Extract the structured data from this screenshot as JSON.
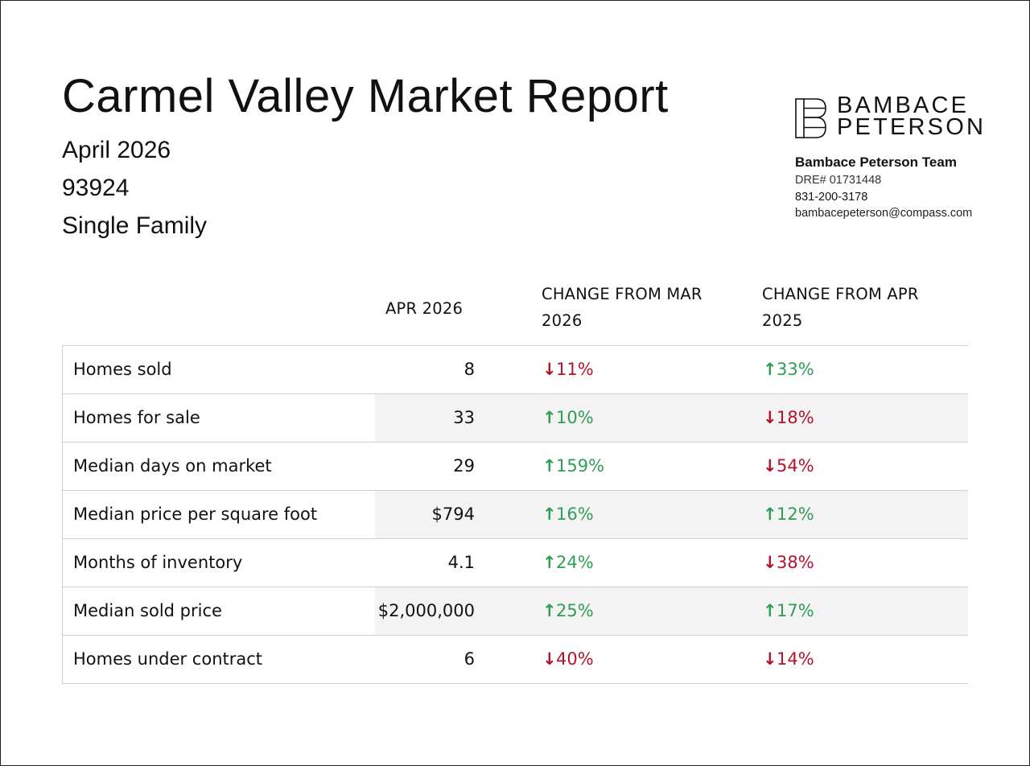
{
  "header": {
    "title": "Carmel Valley Market Report",
    "month": "April 2026",
    "zip": "93924",
    "property_type": "Single Family"
  },
  "brand": {
    "logo_icon": "bp-monogram-icon",
    "logo_line1": "BAMBACE",
    "logo_line2": "PETERSON",
    "team_name": "Bambace Peterson Team",
    "dre": "DRE# 01731448",
    "phone": "831-200-3178",
    "email": "bambacepeterson@compass.com"
  },
  "table": {
    "headers": {
      "current": "APR 2026",
      "change_month": "CHANGE FROM MAR 2026",
      "change_year": "CHANGE FROM APR 2025"
    },
    "rows": [
      {
        "label": "Homes sold",
        "value": "8",
        "mom": "11%",
        "mom_dir": "down",
        "mom_color": "red",
        "yoy": "33%",
        "yoy_dir": "up",
        "yoy_color": "green"
      },
      {
        "label": "Homes for sale",
        "value": "33",
        "mom": "10%",
        "mom_dir": "up",
        "mom_color": "green",
        "yoy": "18%",
        "yoy_dir": "down",
        "yoy_color": "red"
      },
      {
        "label": "Median days on market",
        "value": "29",
        "mom": "159%",
        "mom_dir": "up",
        "mom_color": "green",
        "yoy": "54%",
        "yoy_dir": "down",
        "yoy_color": "red"
      },
      {
        "label": "Median price per square foot",
        "value": "$794",
        "mom": "16%",
        "mom_dir": "up",
        "mom_color": "green",
        "yoy": "12%",
        "yoy_dir": "up",
        "yoy_color": "green"
      },
      {
        "label": "Months of inventory",
        "value": "4.1",
        "mom": "24%",
        "mom_dir": "up",
        "mom_color": "green",
        "yoy": "38%",
        "yoy_dir": "down",
        "yoy_color": "red"
      },
      {
        "label": "Median sold price",
        "value": "$2,000,000",
        "mom": "25%",
        "mom_dir": "up",
        "mom_color": "green",
        "yoy": "17%",
        "yoy_dir": "up",
        "yoy_color": "green"
      },
      {
        "label": "Homes under contract",
        "value": "6",
        "mom": "40%",
        "mom_dir": "down",
        "mom_color": "red",
        "yoy": "14%",
        "yoy_dir": "down",
        "yoy_color": "red"
      }
    ]
  },
  "colors": {
    "up_green": "#2e9e55",
    "down_red": "#b3142a",
    "row_shade": "#f3f3f3",
    "border": "#cfcfcf"
  }
}
